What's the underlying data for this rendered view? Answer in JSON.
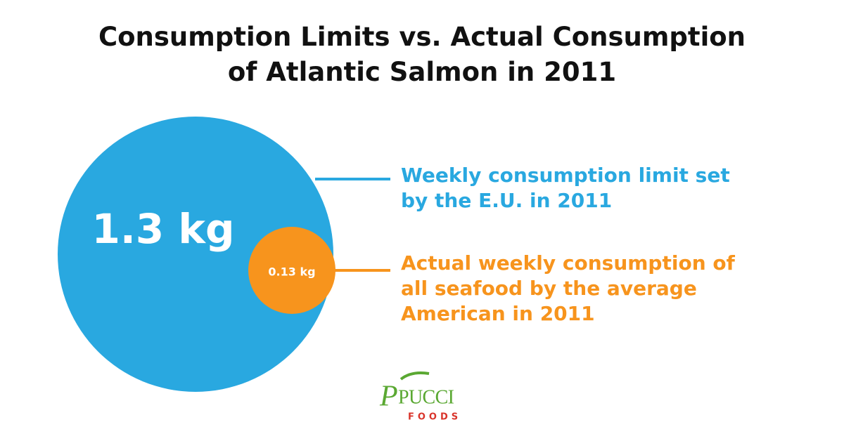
{
  "chart_data": {
    "type": "bubble",
    "title": "Consumption Limits vs. Actual Consumption of Atlantic Salmon in 2011",
    "categories": [
      "Weekly consumption limit set by the E.U. in 2011",
      "Actual weekly consumption of all seafood by the average American in 2011"
    ],
    "values": [
      1.3,
      0.13
    ],
    "value_labels": [
      "1.3 kg",
      "0.13 kg"
    ],
    "colors": [
      "#29a8e0",
      "#f7941d"
    ],
    "logo": {
      "name": "PUCCI",
      "sub": "FOODS"
    }
  }
}
